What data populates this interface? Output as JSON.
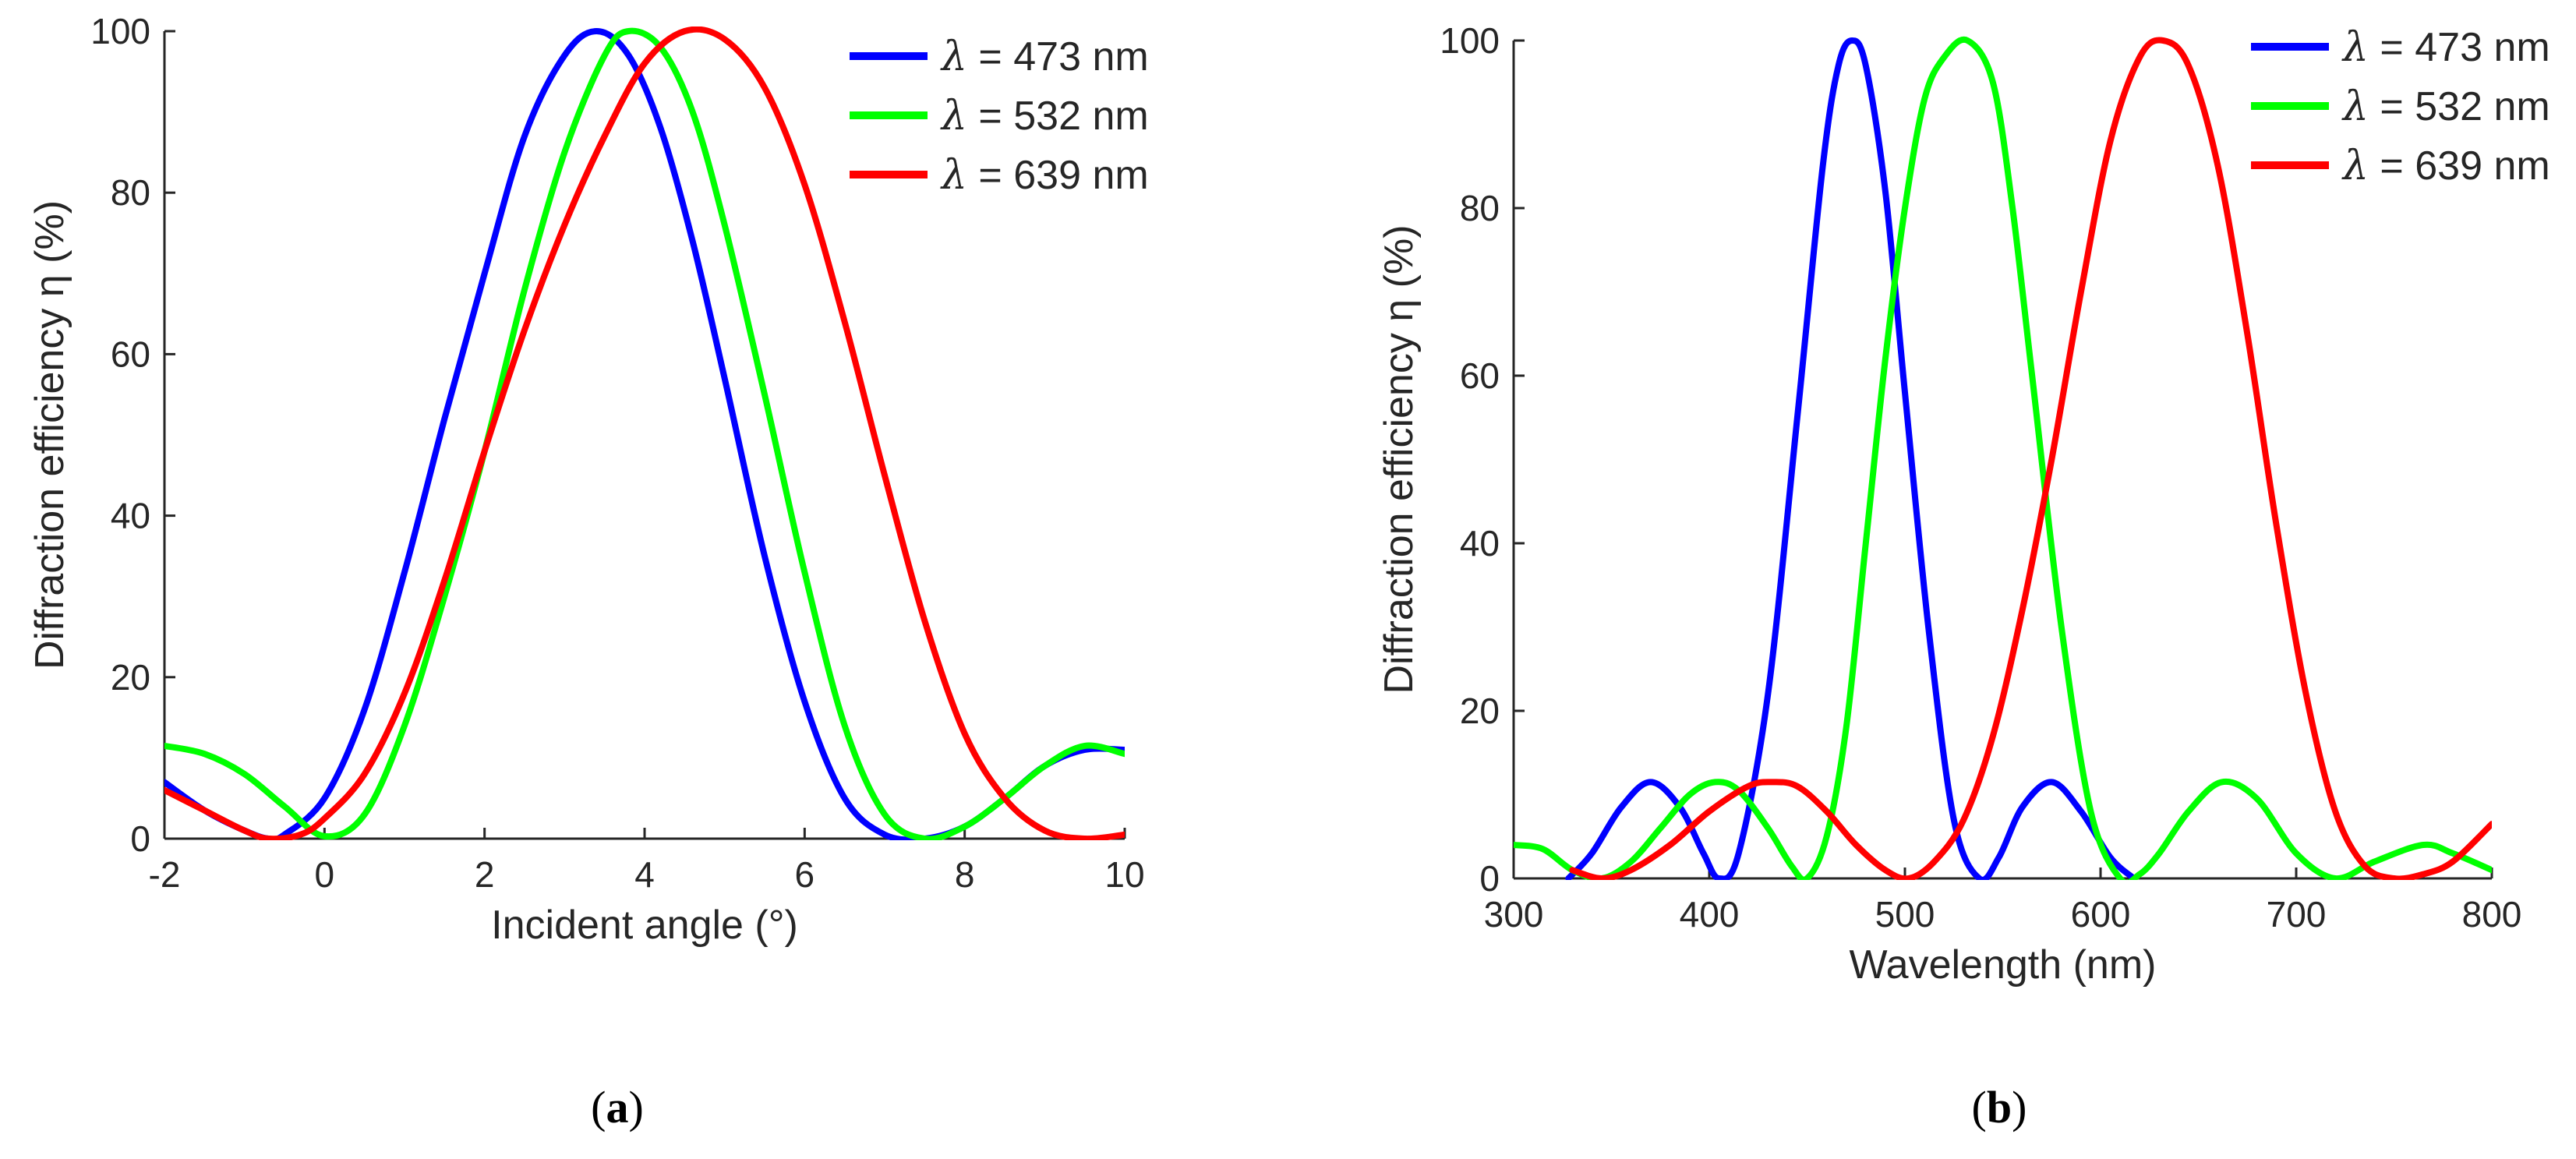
{
  "chart_data": [
    {
      "type": "line",
      "panel_label": "a",
      "xlabel": "Incident angle (°)",
      "ylabel": "Diffraction efficiency η (%)",
      "xlim": [
        -2,
        10
      ],
      "ylim": [
        0,
        100
      ],
      "xticks": [
        -2,
        0,
        2,
        4,
        6,
        8,
        10
      ],
      "yticks": [
        0,
        20,
        40,
        60,
        80,
        100
      ],
      "grid": false,
      "legend": "top-right",
      "series": [
        {
          "name": "λ = 473 nm",
          "legend_symbol": "λ",
          "legend_text": " = 473 nm",
          "color": "#0000ff",
          "x": [
            -2,
            -1.5,
            -1,
            -0.7,
            -0.5,
            0,
            0.5,
            1,
            1.5,
            2,
            2.5,
            3,
            3.4,
            3.8,
            4.2,
            4.6,
            5,
            5.5,
            6,
            6.5,
            7,
            7.5,
            8,
            8.5,
            9,
            9.5,
            10
          ],
          "y": [
            7,
            3.5,
            1,
            0,
            0.5,
            5,
            16,
            33,
            52,
            70,
            87,
            97,
            100,
            97,
            88,
            74,
            57,
            35,
            17,
            5,
            0.5,
            0,
            1.5,
            5,
            9,
            11,
            11
          ]
        },
        {
          "name": "λ = 532 nm",
          "legend_symbol": "λ",
          "legend_text": " = 532 nm",
          "color": "#00ff00",
          "x": [
            -2,
            -1.5,
            -1,
            -0.5,
            0,
            0.5,
            1,
            1.5,
            2,
            2.5,
            3,
            3.5,
            3.8,
            4.2,
            4.6,
            5,
            5.5,
            6,
            6.5,
            7,
            7.5,
            8,
            8.5,
            9,
            9.5,
            10
          ],
          "y": [
            11.5,
            10.5,
            8,
            4,
            0.3,
            3,
            14,
            30,
            48,
            68,
            85,
            97,
            100,
            98,
            90,
            76,
            55,
            33,
            14,
            3,
            0,
            1.5,
            5,
            9,
            11.5,
            10.5
          ]
        },
        {
          "name": "λ = 639 nm",
          "legend_symbol": "λ",
          "legend_text": " = 639 nm",
          "color": "#ff0000",
          "x": [
            -2,
            -1.5,
            -1,
            -0.7,
            -0.3,
            0,
            0.5,
            1,
            1.5,
            2,
            2.5,
            3,
            3.5,
            4,
            4.5,
            5,
            5.5,
            6,
            6.5,
            7,
            7.5,
            8,
            8.5,
            9,
            9.5,
            10
          ],
          "y": [
            6,
            3.5,
            1,
            0,
            0.5,
            2.5,
            8,
            18,
            32,
            48,
            63,
            76,
            87,
            96,
            100,
            99,
            93,
            81,
            64,
            45,
            27,
            13,
            5,
            1,
            0,
            0.5
          ]
        }
      ]
    },
    {
      "type": "line",
      "panel_label": "b",
      "xlabel": "Wavelength (nm)",
      "ylabel": "Diffraction efficiency η (%)",
      "xlim": [
        300,
        800
      ],
      "ylim": [
        0,
        100
      ],
      "xticks": [
        300,
        400,
        500,
        600,
        700,
        800
      ],
      "yticks": [
        0,
        20,
        40,
        60,
        80,
        100
      ],
      "grid": false,
      "legend": "top-right",
      "series": [
        {
          "name": "λ = 473 nm",
          "legend_symbol": "λ",
          "legend_text": " = 473 nm",
          "color": "#0000ff",
          "x": [
            328,
            340,
            355,
            370,
            385,
            397,
            405,
            415,
            430,
            445,
            458,
            466,
            473,
            480,
            490,
            500,
            512,
            525,
            538,
            548,
            560,
            575,
            590,
            605,
            617
          ],
          "y": [
            0,
            3,
            8.5,
            11.5,
            8.5,
            3,
            0,
            3,
            22,
            55,
            85,
            97,
            100,
            97,
            82,
            58,
            30,
            7,
            0,
            2.5,
            8.5,
            11.5,
            8,
            2.5,
            0
          ]
        },
        {
          "name": "λ = 532 nm",
          "legend_symbol": "λ",
          "legend_text": " = 532 nm",
          "color": "#00ff00",
          "x": [
            300,
            315,
            330,
            345,
            360,
            375,
            390,
            403,
            415,
            430,
            442,
            450,
            460,
            470,
            480,
            490,
            500,
            510,
            520,
            532,
            545,
            555,
            565,
            580,
            595,
            610,
            620,
            630,
            645,
            662,
            680,
            700,
            720,
            740,
            765,
            780,
            800
          ],
          "y": [
            4,
            3.5,
            1,
            0,
            2,
            6,
            10,
            11.5,
            10.5,
            6,
            1.5,
            0,
            5,
            18,
            40,
            62,
            80,
            93,
            98,
            100,
            95,
            80,
            60,
            30,
            8,
            0,
            0.5,
            3,
            8,
            11.5,
            9.5,
            3,
            0,
            2,
            4,
            3,
            1
          ]
        },
        {
          "name": "λ = 639 nm",
          "legend_symbol": "λ",
          "legend_text": " = 639 nm",
          "color": "#ff0000",
          "x": [
            330,
            345,
            360,
            380,
            400,
            420,
            432,
            445,
            460,
            475,
            490,
            502,
            515,
            530,
            545,
            560,
            575,
            590,
            605,
            620,
            632,
            645,
            660,
            675,
            690,
            705,
            720,
            735,
            750,
            765,
            780,
            800
          ],
          "y": [
            1,
            0,
            1,
            4,
            8,
            11,
            11.5,
            11,
            8,
            4,
            1,
            0,
            2,
            7,
            17,
            32,
            50,
            70,
            88,
            98,
            100,
            97,
            85,
            65,
            42,
            22,
            8,
            1.5,
            0,
            0.5,
            2,
            6.5
          ]
        }
      ]
    }
  ]
}
